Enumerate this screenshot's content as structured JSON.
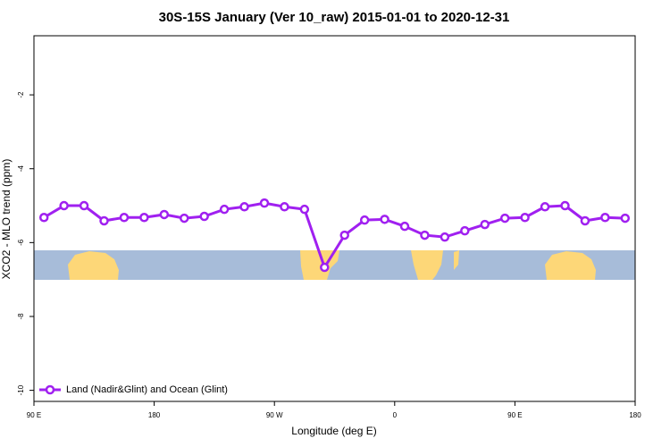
{
  "chart_data": {
    "type": "line",
    "title": "30S-15S January (Ver 10_raw)   2015-01-01 to 2020-12-31",
    "x_label": "Longitude (deg E)",
    "y_label": "XCO2 - MLO trend (ppm)",
    "x": [
      97.5,
      112.5,
      127.5,
      142.5,
      157.5,
      172.5,
      187.5,
      202.5,
      217.5,
      232.5,
      247.5,
      262.5,
      277.5,
      292.5,
      307.5,
      322.5,
      337.5,
      352.5,
      367.5,
      382.5,
      397.5,
      412.5,
      427.5,
      442.5,
      457.5,
      472.5,
      487.5,
      502.5,
      517.5,
      532.5
    ],
    "series": [
      {
        "name": "Land (Nadir&Glint) and Ocean (Glint)",
        "color": "#a020f0",
        "values": [
          -5.32,
          -5.0,
          -5.0,
          -5.41,
          -5.32,
          -5.32,
          -5.24,
          -5.34,
          -5.29,
          -5.1,
          -5.03,
          -4.93,
          -5.03,
          -5.1,
          -6.67,
          -5.8,
          -5.39,
          -5.37,
          -5.56,
          -5.8,
          -5.85,
          -5.68,
          -5.51,
          -5.34,
          -5.32,
          -5.03,
          -5.0,
          -5.41,
          -5.32,
          -5.34
        ]
      }
    ],
    "xlim": [
      90,
      540
    ],
    "xticks": [
      {
        "value": 90,
        "label": "90 E"
      },
      {
        "value": 180,
        "label": "180"
      },
      {
        "value": 270,
        "label": "90 W"
      },
      {
        "value": 360,
        "label": "0"
      },
      {
        "value": 450,
        "label": "90 E"
      },
      {
        "value": 540,
        "label": "180"
      }
    ],
    "ylim": [
      -10.3,
      -0.4
    ],
    "yticks": [
      -2,
      -4,
      -6,
      -8,
      -10
    ],
    "legend": "bottom-left"
  }
}
